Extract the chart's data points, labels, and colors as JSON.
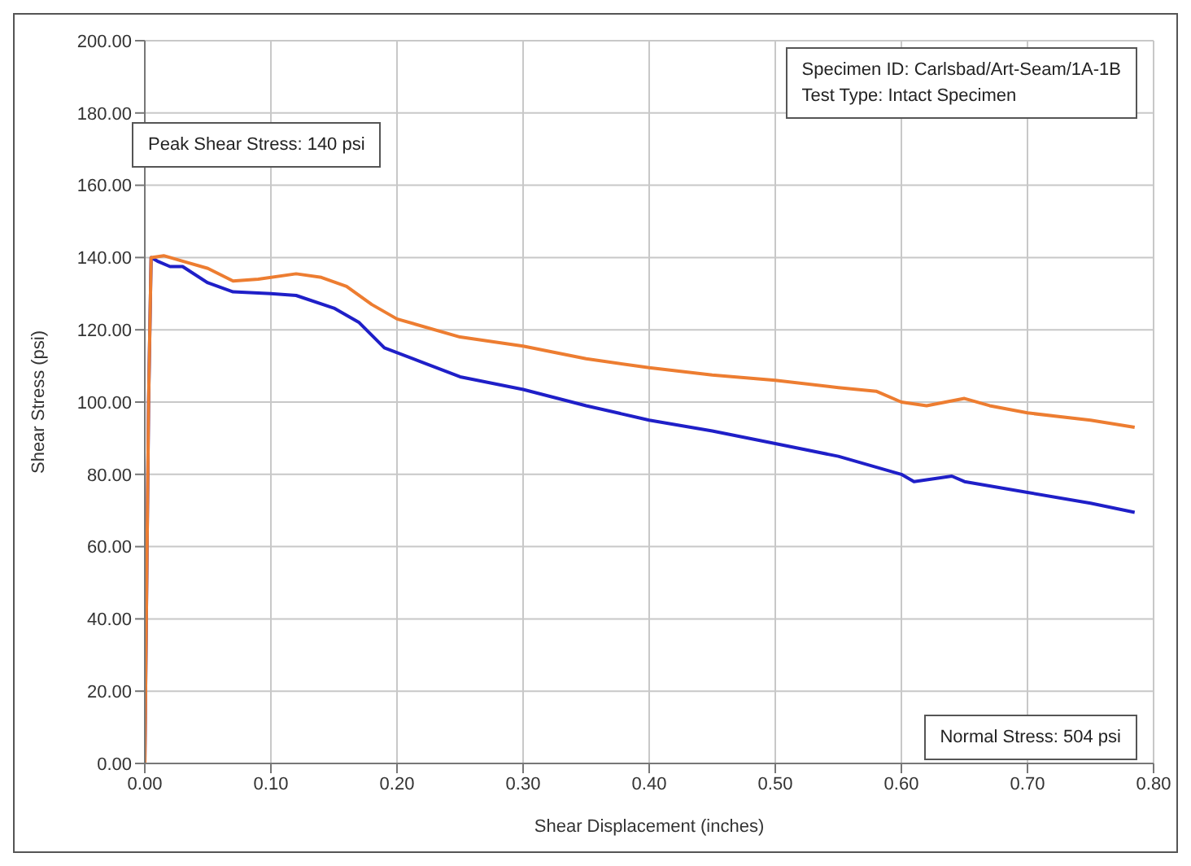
{
  "chart_data": {
    "type": "line",
    "xlabel": "Shear Displacement (inches)",
    "ylabel": "Shear Stress (psi)",
    "xlim": [
      0,
      0.8
    ],
    "xticks": [
      {
        "value": 0,
        "label": "0.00"
      },
      {
        "value": 0.1,
        "label": "0.10"
      },
      {
        "value": 0.2,
        "label": "0.20"
      },
      {
        "value": 0.3,
        "label": "0.30"
      },
      {
        "value": 0.4,
        "label": "0.40"
      },
      {
        "value": 0.5,
        "label": "0.50"
      },
      {
        "value": 0.6,
        "label": "0.60"
      },
      {
        "value": 0.7,
        "label": "0.70"
      },
      {
        "value": 0.8,
        "label": "0.80"
      }
    ],
    "ylim": [
      0,
      200
    ],
    "yticks": [
      {
        "value": 0,
        "label": "0.00"
      },
      {
        "value": 20,
        "label": "20.00"
      },
      {
        "value": 40,
        "label": "40.00"
      },
      {
        "value": 60,
        "label": "60.00"
      },
      {
        "value": 80,
        "label": "80.00"
      },
      {
        "value": 100,
        "label": "100.00"
      },
      {
        "value": 120,
        "label": "120.00"
      },
      {
        "value": 140,
        "label": "140.00"
      },
      {
        "value": 160,
        "label": "160.00"
      },
      {
        "value": 180,
        "label": "180.00"
      },
      {
        "value": 200,
        "label": "200.00"
      }
    ],
    "grid": true,
    "marker": "none",
    "line_style": "solid",
    "annotations": [
      "Specimen ID: Carlsbad/Art-Seam/1A-1B\nTest Type: Intact Specimen",
      "Peak Shear Stress: 140 psi",
      "Normal Stress: 504 psi"
    ],
    "series": [
      {
        "color": "#1f1fc8",
        "x": [
          0,
          0.003,
          0.005,
          0.01,
          0.02,
          0.03,
          0.05,
          0.07,
          0.1,
          0.12,
          0.15,
          0.17,
          0.19,
          0.22,
          0.25,
          0.3,
          0.35,
          0.4,
          0.45,
          0.5,
          0.55,
          0.6,
          0.61,
          0.64,
          0.65,
          0.7,
          0.75,
          0.785
        ],
        "values": [
          0,
          100,
          140,
          139,
          137.5,
          137.5,
          133,
          130.5,
          130,
          129.5,
          126,
          122,
          115,
          111,
          107,
          103.5,
          99,
          95,
          92,
          88.5,
          85,
          80,
          78,
          79.5,
          78,
          75,
          72,
          69.5
        ]
      },
      {
        "color": "#ed7d31",
        "x": [
          0,
          0.003,
          0.005,
          0.015,
          0.03,
          0.05,
          0.07,
          0.09,
          0.12,
          0.14,
          0.16,
          0.18,
          0.2,
          0.25,
          0.3,
          0.35,
          0.4,
          0.45,
          0.5,
          0.55,
          0.58,
          0.6,
          0.62,
          0.65,
          0.67,
          0.7,
          0.75,
          0.785
        ],
        "values": [
          0,
          100,
          140,
          140.5,
          139,
          137,
          133.5,
          134,
          135.5,
          134.5,
          132,
          127,
          123,
          118,
          115.5,
          112,
          109.5,
          107.5,
          106,
          104,
          103,
          100,
          99,
          101,
          99,
          97,
          95,
          93
        ]
      }
    ]
  }
}
